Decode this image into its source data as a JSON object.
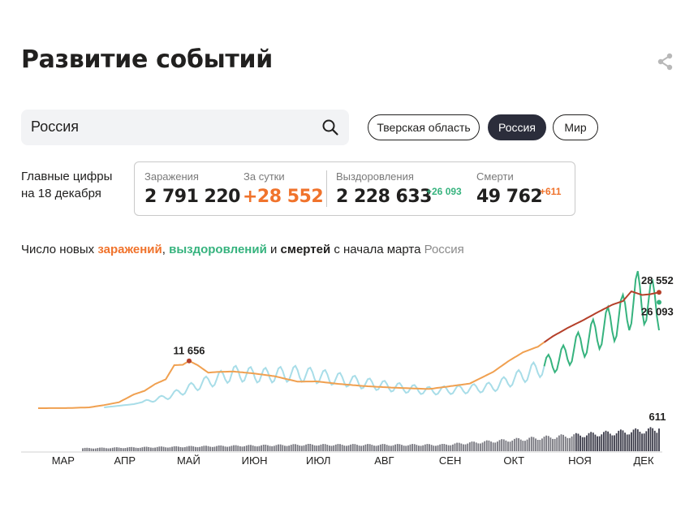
{
  "header": {
    "title": "Развитие событий",
    "share_icon": "share-icon"
  },
  "search": {
    "value": "Россия",
    "icon": "search-icon"
  },
  "regions": [
    {
      "label": "Тверская область",
      "active": false
    },
    {
      "label": "Россия",
      "active": true
    },
    {
      "label": "Мир",
      "active": false
    }
  ],
  "summary": {
    "caption_line1": "Главные цифры",
    "caption_line2": "на 18 декабря",
    "infections_label": "Заражения",
    "infections_value": "2 791 220",
    "daily_label": "За сутки",
    "daily_value": "+28 552",
    "recoveries_label": "Выздоровления",
    "recoveries_value": "2 228 633",
    "recoveries_delta": "+26 093",
    "deaths_label": "Смерти",
    "deaths_value": "49 762",
    "deaths_delta": "+611"
  },
  "subtitle": {
    "prefix": "Число новых ",
    "infections": "заражений",
    "comma": ", ",
    "recoveries": "выздоровлений",
    "and": " и ",
    "deaths": "смертей",
    "suffix": " с начала марта",
    "region": "Россия"
  },
  "colors": {
    "infections": "#f0a050",
    "infections_late": "#b5402a",
    "recoveries_early": "#a8dde8",
    "recoveries_late": "#36b37e",
    "deaths": "#4a4a55",
    "accent_orange": "#f0732c",
    "accent_green": "#36b37e"
  },
  "chart_data": {
    "type": "line",
    "x_labels": [
      "МАР",
      "АПР",
      "МАЙ",
      "ИЮН",
      "ИЮЛ",
      "АВГ",
      "СЕН",
      "ОКТ",
      "НОЯ",
      "ДЕК"
    ],
    "y_max": 30000,
    "deaths_y_max": 700,
    "annotations": [
      {
        "series": "infections",
        "date": "2020-05-11",
        "value": 11656,
        "label": "11 656"
      },
      {
        "series": "infections",
        "date": "2020-12-18",
        "value": 28552,
        "label": "28 552"
      },
      {
        "series": "recoveries",
        "date": "2020-12-18",
        "value": 26093,
        "label": "26 093"
      },
      {
        "series": "deaths",
        "date": "2020-12-18",
        "value": 611,
        "label": "611"
      }
    ],
    "infections": [
      [
        "2020-03-01",
        0
      ],
      [
        "2020-03-15",
        30
      ],
      [
        "2020-03-25",
        200
      ],
      [
        "2020-04-01",
        770
      ],
      [
        "2020-04-08",
        1460
      ],
      [
        "2020-04-15",
        3390
      ],
      [
        "2020-04-20",
        4270
      ],
      [
        "2020-04-25",
        5960
      ],
      [
        "2020-04-30",
        7100
      ],
      [
        "2020-05-04",
        10600
      ],
      [
        "2020-05-08",
        10700
      ],
      [
        "2020-05-11",
        11656
      ],
      [
        "2020-05-15",
        10600
      ],
      [
        "2020-05-20",
        8760
      ],
      [
        "2020-05-25",
        8950
      ],
      [
        "2020-06-01",
        9040
      ],
      [
        "2020-06-10",
        8590
      ],
      [
        "2020-06-20",
        7900
      ],
      [
        "2020-07-01",
        6550
      ],
      [
        "2020-07-10",
        6600
      ],
      [
        "2020-07-20",
        6000
      ],
      [
        "2020-08-01",
        5460
      ],
      [
        "2020-08-15",
        5060
      ],
      [
        "2020-08-25",
        4850
      ],
      [
        "2020-09-01",
        4730
      ],
      [
        "2020-09-10",
        5360
      ],
      [
        "2020-09-20",
        6070
      ],
      [
        "2020-10-01",
        8940
      ],
      [
        "2020-10-08",
        11540
      ],
      [
        "2020-10-15",
        13760
      ],
      [
        "2020-10-22",
        15150
      ],
      [
        "2020-10-29",
        17700
      ],
      [
        "2020-11-05",
        19770
      ],
      [
        "2020-11-12",
        21600
      ],
      [
        "2020-11-19",
        23600
      ],
      [
        "2020-11-26",
        25500
      ],
      [
        "2020-12-01",
        26400
      ],
      [
        "2020-12-05",
        28800
      ],
      [
        "2020-12-10",
        27900
      ],
      [
        "2020-12-14",
        28100
      ],
      [
        "2020-12-18",
        28552
      ]
    ],
    "recoveries": [
      [
        "2020-03-01",
        0
      ],
      [
        "2020-04-01",
        200
      ],
      [
        "2020-04-15",
        1000
      ],
      [
        "2020-05-01",
        3000
      ],
      [
        "2020-05-15",
        6000
      ],
      [
        "2020-06-01",
        9000
      ],
      [
        "2020-06-15",
        8500
      ],
      [
        "2020-07-01",
        9000
      ],
      [
        "2020-07-15",
        8000
      ],
      [
        "2020-08-01",
        6500
      ],
      [
        "2020-08-15",
        5500
      ],
      [
        "2020-09-01",
        4500
      ],
      [
        "2020-09-15",
        4800
      ],
      [
        "2020-10-01",
        5500
      ],
      [
        "2020-10-15",
        8500
      ],
      [
        "2020-11-01",
        12500
      ],
      [
        "2020-11-15",
        18000
      ],
      [
        "2020-12-01",
        24000
      ],
      [
        "2020-12-08",
        29000
      ],
      [
        "2020-12-18",
        26093
      ]
    ],
    "deaths_note": "Daily deaths are shown as small bars along the bottom, rising to 611 on 18 December."
  }
}
